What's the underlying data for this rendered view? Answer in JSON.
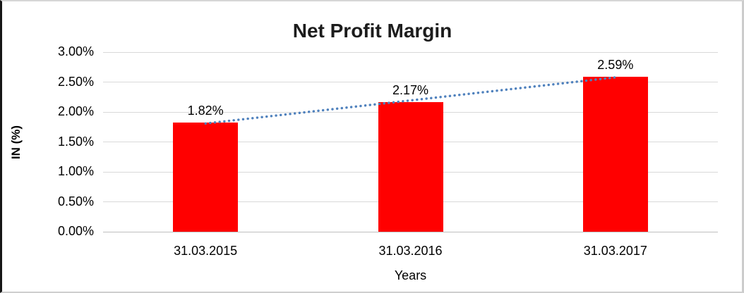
{
  "chart_data": {
    "type": "bar",
    "title": "Net Profit Margin",
    "xlabel": "Years",
    "ylabel": "IN (%)",
    "categories": [
      "31.03.2015",
      "31.03.2016",
      "31.03.2017"
    ],
    "values": [
      1.82,
      2.17,
      2.59
    ],
    "data_labels": [
      "1.82%",
      "2.17%",
      "2.59%"
    ],
    "ylim": [
      0,
      3
    ],
    "ytick_step": 0.5,
    "ytick_labels": [
      "0.00%",
      "0.50%",
      "1.00%",
      "1.50%",
      "2.00%",
      "2.50%",
      "3.00%"
    ],
    "grid": true,
    "legend": "none",
    "bar_color": "#ff0000",
    "gridline_color": "#d9d9d9",
    "axis_line_color": "#bfbfbf",
    "trendline": {
      "type": "linear",
      "style": "dotted",
      "color": "#4f81bd"
    }
  }
}
